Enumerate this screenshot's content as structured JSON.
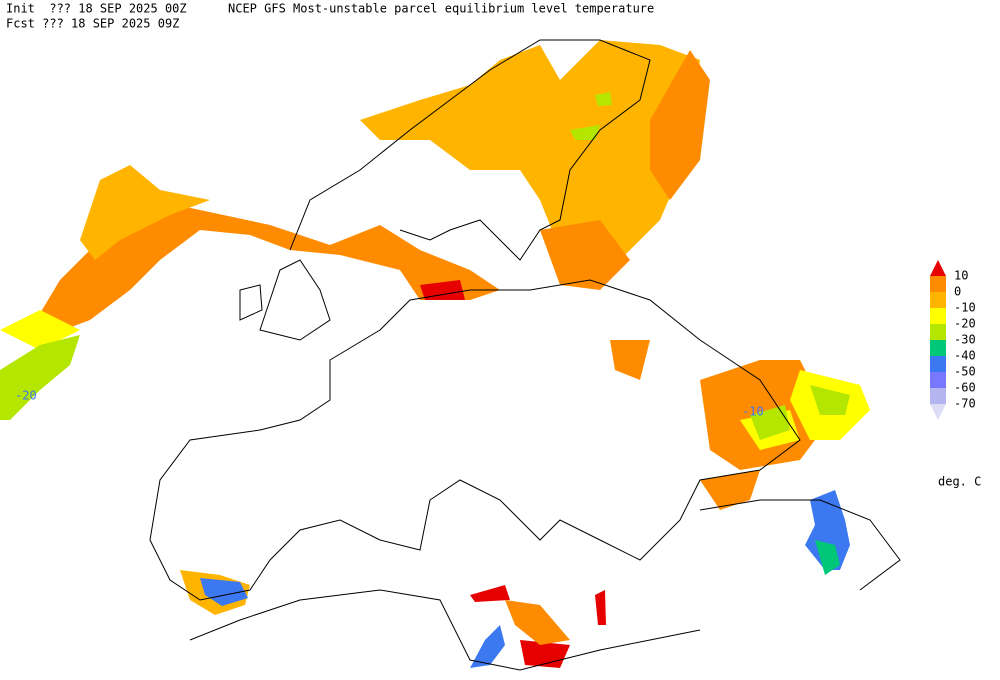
{
  "header": {
    "init": "Init  ??? 18 SEP 2025 00Z",
    "title": "NCEP GFS Most-unstable parcel equilibrium level temperature",
    "forecast": "Fcst ??? 18 SEP 2025 09Z"
  },
  "legend": {
    "levels": [
      10,
      0,
      -10,
      -20,
      -30,
      -40,
      -50,
      -60,
      -70
    ],
    "colors": [
      "#e60000",
      "#ff8c00",
      "#ffb400",
      "#ffff00",
      "#b4e600",
      "#00c878",
      "#3c78f0",
      "#7878ff",
      "#b4b4f0",
      "#dcdcf5"
    ],
    "units": "deg. C"
  },
  "contour_labels": [
    "-20",
    "-10"
  ]
}
